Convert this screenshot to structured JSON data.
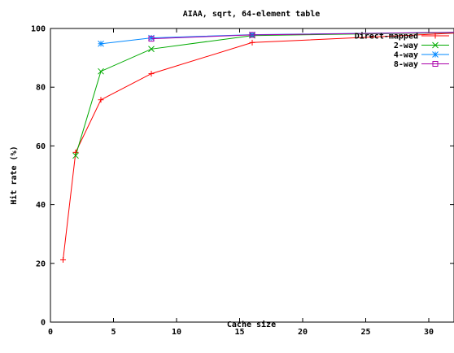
{
  "chart_data": {
    "type": "line",
    "title": "AIAA, sqrt, 64-element table",
    "xlabel": "Cache size",
    "ylabel": "Hit rate (%)",
    "xlim": [
      0,
      32
    ],
    "ylim": [
      0,
      100
    ],
    "xticks": [
      "0",
      "5",
      "10",
      "15",
      "20",
      "25",
      "30"
    ],
    "yticks": [
      "0",
      "20",
      "40",
      "60",
      "80",
      "100"
    ],
    "grid": false,
    "legend_position": "top-right",
    "series": [
      {
        "name": "Direct-mapped",
        "color": "#ff0000",
        "marker": "plus",
        "x": [
          1,
          2,
          4,
          8,
          16,
          32
        ],
        "y": [
          21.2,
          57.8,
          75.7,
          84.6,
          95.2,
          98.4
        ]
      },
      {
        "name": "2-way",
        "color": "#00aa00",
        "marker": "cross",
        "x": [
          2,
          4,
          8,
          16,
          32
        ],
        "y": [
          56.7,
          85.4,
          93.0,
          97.6,
          98.6
        ]
      },
      {
        "name": "4-way",
        "color": "#0088ff",
        "marker": "star",
        "x": [
          4,
          8,
          16,
          32
        ],
        "y": [
          94.8,
          96.8,
          97.9,
          98.7
        ]
      },
      {
        "name": "8-way",
        "color": "#aa00aa",
        "marker": "square",
        "x": [
          8,
          16,
          32
        ],
        "y": [
          96.5,
          97.8,
          98.7
        ]
      }
    ]
  }
}
